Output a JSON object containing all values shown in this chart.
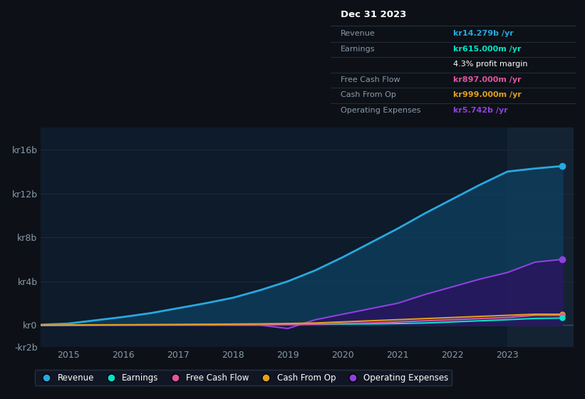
{
  "background_color": "#0d1117",
  "plot_bg_color": "#0d1b2a",
  "grid_color": "#1e2d3d",
  "years": [
    2014.5,
    2015,
    2015.5,
    2016,
    2016.5,
    2017,
    2017.5,
    2018,
    2018.5,
    2019,
    2019.5,
    2020,
    2020.5,
    2021,
    2021.5,
    2022,
    2022.5,
    2023,
    2023.5,
    2024
  ],
  "revenue": [
    0.05,
    0.15,
    0.45,
    0.75,
    1.1,
    1.55,
    2.0,
    2.5,
    3.2,
    4.0,
    5.0,
    6.2,
    7.5,
    8.8,
    10.2,
    11.5,
    12.8,
    14.0,
    14.279,
    14.5
  ],
  "earnings": [
    0.0,
    0.01,
    0.02,
    0.02,
    0.03,
    0.04,
    0.05,
    0.05,
    0.06,
    0.07,
    0.08,
    0.1,
    0.12,
    0.15,
    0.2,
    0.3,
    0.4,
    0.5,
    0.615,
    0.65
  ],
  "free_cash_flow": [
    0.0,
    0.01,
    0.01,
    0.02,
    0.02,
    0.03,
    0.03,
    0.04,
    0.05,
    0.06,
    0.1,
    0.15,
    0.2,
    0.3,
    0.4,
    0.5,
    0.6,
    0.7,
    0.897,
    0.9
  ],
  "cash_from_op": [
    0.0,
    0.02,
    0.03,
    0.04,
    0.05,
    0.06,
    0.08,
    0.1,
    0.12,
    0.15,
    0.2,
    0.3,
    0.4,
    0.5,
    0.6,
    0.7,
    0.8,
    0.9,
    0.999,
    1.0
  ],
  "operating_expenses": [
    0.0,
    0.0,
    0.0,
    0.0,
    0.0,
    0.0,
    0.0,
    0.0,
    0.0,
    -0.3,
    0.5,
    1.0,
    1.5,
    2.0,
    2.8,
    3.5,
    4.2,
    4.8,
    5.742,
    6.0
  ],
  "revenue_color": "#29a8e0",
  "earnings_color": "#00e5c8",
  "fcf_color": "#e055a0",
  "cashop_color": "#e0a020",
  "opex_color": "#9040e0",
  "revenue_fill": "#0d4060",
  "opex_fill": "#2d1060",
  "ylim_min": -2.0,
  "ylim_max": 18.0,
  "yticks": [
    -2,
    0,
    4,
    8,
    12,
    16
  ],
  "ytick_labels": [
    "-kr2b",
    "kr0",
    "kr4b",
    "kr8b",
    "kr12b",
    "kr16b"
  ],
  "xlim_min": 2014.5,
  "xlim_max": 2024.2,
  "xtick_positions": [
    2015,
    2016,
    2017,
    2018,
    2019,
    2020,
    2021,
    2022,
    2023
  ],
  "highlight_start": 2023.0,
  "highlight_end": 2024.2,
  "tooltip_title": "Dec 31 2023",
  "tooltip_rows": [
    {
      "label": "Revenue",
      "value": "kr14.279b /yr",
      "value_color": "#29a8e0"
    },
    {
      "label": "Earnings",
      "value": "kr615.000m /yr",
      "value_color": "#00e5c8"
    },
    {
      "label": "",
      "value": "4.3% profit margin",
      "value_color": "#ffffff"
    },
    {
      "label": "Free Cash Flow",
      "value": "kr897.000m /yr",
      "value_color": "#e055a0"
    },
    {
      "label": "Cash From Op",
      "value": "kr999.000m /yr",
      "value_color": "#e0a020"
    },
    {
      "label": "Operating Expenses",
      "value": "kr5.742b /yr",
      "value_color": "#9040e0"
    }
  ],
  "legend_items": [
    {
      "label": "Revenue",
      "color": "#29a8e0"
    },
    {
      "label": "Earnings",
      "color": "#00e5c8"
    },
    {
      "label": "Free Cash Flow",
      "color": "#e055a0"
    },
    {
      "label": "Cash From Op",
      "color": "#e0a020"
    },
    {
      "label": "Operating Expenses",
      "color": "#9040e0"
    }
  ]
}
